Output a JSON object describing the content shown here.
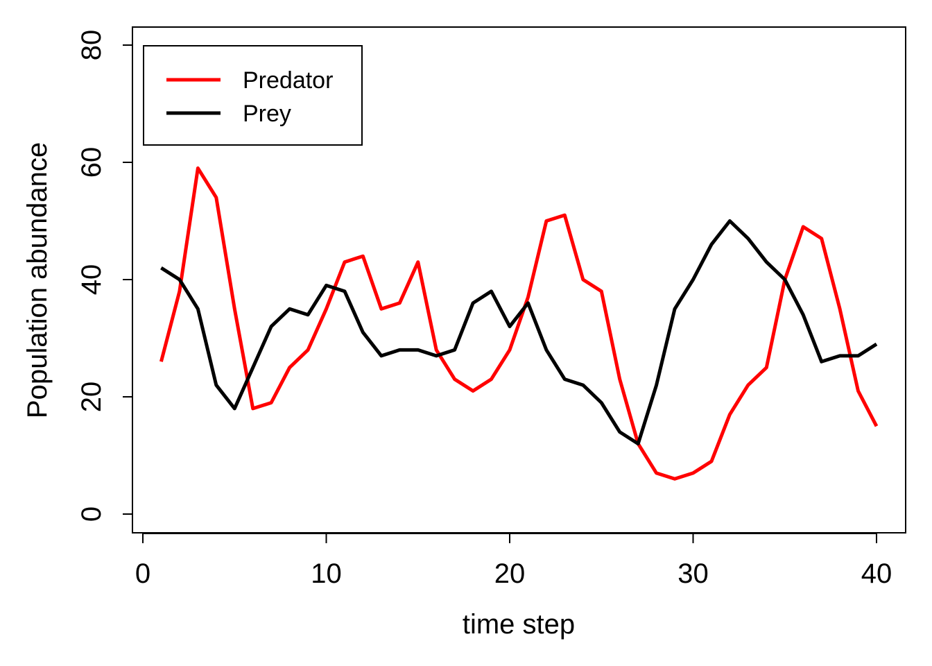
{
  "chart_data": {
    "type": "line",
    "title": "",
    "xlabel": "time step",
    "ylabel": "Population abundance",
    "xlim": [
      0,
      40
    ],
    "ylim": [
      0,
      80
    ],
    "xticks": [
      0,
      10,
      20,
      30,
      40
    ],
    "yticks": [
      0,
      20,
      40,
      60,
      80
    ],
    "grid": false,
    "legend_position": "top-left",
    "x": [
      1,
      2,
      3,
      4,
      5,
      6,
      7,
      8,
      9,
      10,
      11,
      12,
      13,
      14,
      15,
      16,
      17,
      18,
      19,
      20,
      21,
      22,
      23,
      24,
      25,
      26,
      27,
      28,
      29,
      30,
      31,
      32,
      33,
      34,
      35,
      36,
      37,
      38,
      39,
      40
    ],
    "series": [
      {
        "name": "Predator",
        "color": "#ff0000",
        "values": [
          26,
          38,
          59,
          54,
          35,
          18,
          19,
          25,
          28,
          35,
          43,
          44,
          35,
          36,
          43,
          28,
          23,
          21,
          23,
          28,
          37,
          50,
          51,
          40,
          38,
          23,
          12,
          7,
          6,
          7,
          9,
          17,
          22,
          25,
          40,
          49,
          47,
          35,
          21,
          15
        ]
      },
      {
        "name": "Prey",
        "color": "#000000",
        "values": [
          42,
          40,
          35,
          22,
          18,
          25,
          32,
          35,
          34,
          39,
          38,
          31,
          27,
          28,
          28,
          27,
          28,
          36,
          38,
          32,
          36,
          28,
          23,
          22,
          19,
          14,
          12,
          22,
          35,
          40,
          46,
          50,
          47,
          43,
          40,
          34,
          26,
          27,
          27,
          29
        ]
      }
    ]
  }
}
